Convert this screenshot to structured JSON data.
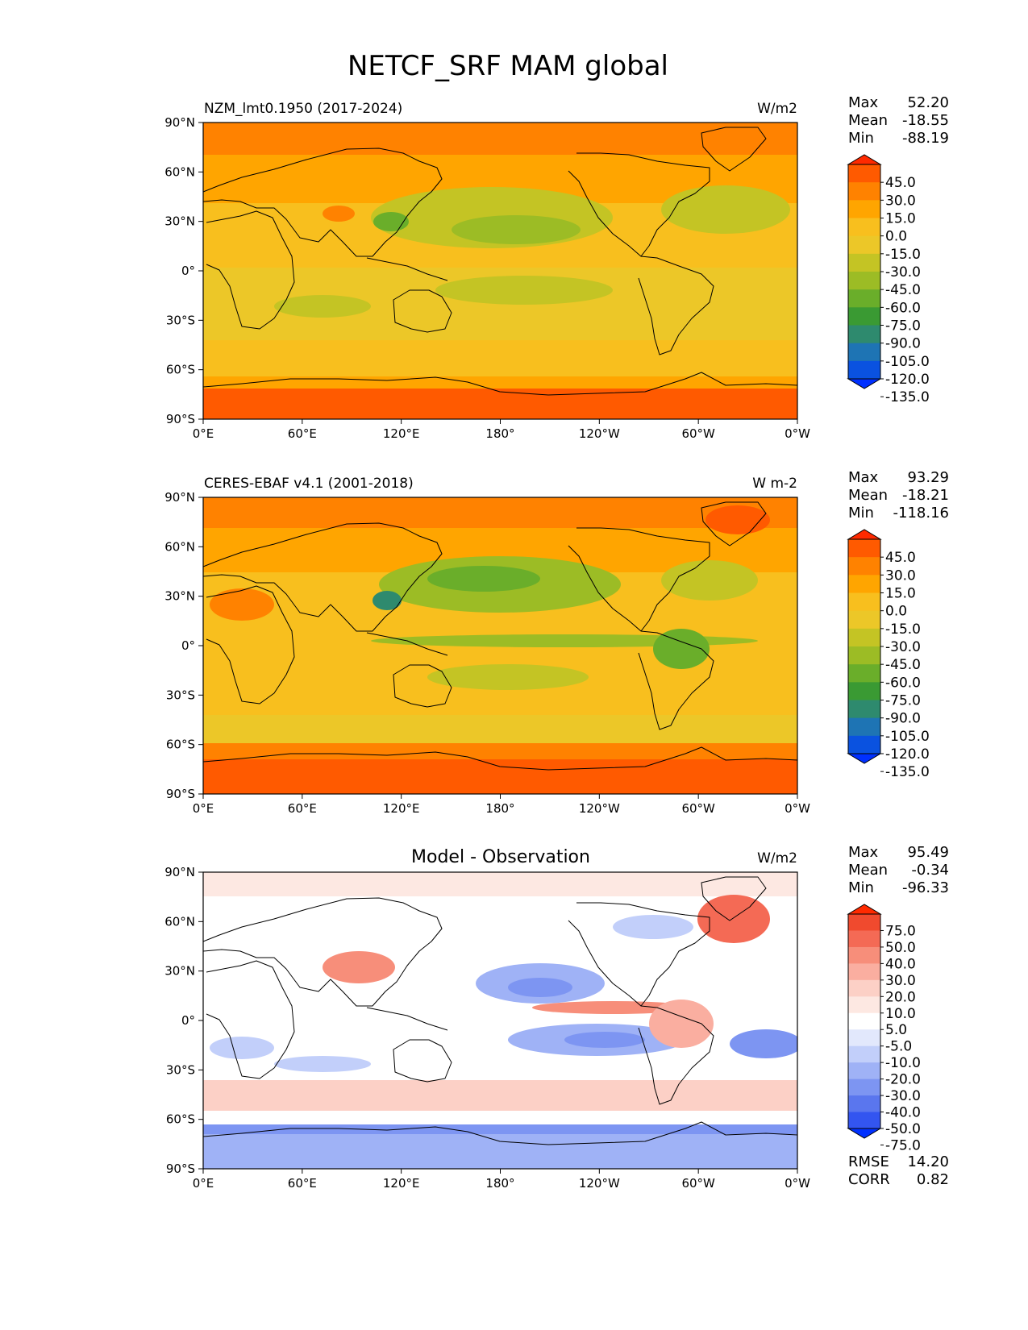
{
  "figure_title": "NETCF_SRF MAM global",
  "chart_data": [
    {
      "type": "heatmap",
      "title": "NZM_lmt0.1950 (2017-2024)",
      "units": "W/m2",
      "stats": {
        "max_label": "Max",
        "mean_label": "Mean",
        "min_label": "Min",
        "max": "52.20",
        "mean": "-18.55",
        "min": "-88.19"
      },
      "colorbar": {
        "levels": [
          "45.0",
          "30.0",
          "15.0",
          "0.0",
          "-15.0",
          "-30.0",
          "-45.0",
          "-60.0",
          "-75.0",
          "-90.0",
          "-105.0",
          "-120.0",
          "-135.0"
        ],
        "colors": [
          "#ff2a00",
          "#ff5a00",
          "#ff8200",
          "#ffa500",
          "#f8bf1e",
          "#ecc728",
          "#c4c424",
          "#9cbc25",
          "#6aae2a",
          "#3a9a33",
          "#2e8a6e",
          "#1e74b4",
          "#0a52e0",
          "#0030ff"
        ]
      },
      "x_ticks": [
        "0°E",
        "60°E",
        "120°E",
        "180°",
        "120°W",
        "60°W",
        "0°W"
      ],
      "y_ticks": [
        "90°N",
        "60°N",
        "30°N",
        "0°",
        "30°S",
        "60°S",
        "90°S"
      ]
    },
    {
      "type": "heatmap",
      "title": "CERES-EBAF v4.1 (2001-2018)",
      "units": "W m-2",
      "stats": {
        "max_label": "Max",
        "mean_label": "Mean",
        "min_label": "Min",
        "max": "93.29",
        "mean": "-18.21",
        "min": "-118.16"
      },
      "colorbar": {
        "levels": [
          "45.0",
          "30.0",
          "15.0",
          "0.0",
          "-15.0",
          "-30.0",
          "-45.0",
          "-60.0",
          "-75.0",
          "-90.0",
          "-105.0",
          "-120.0",
          "-135.0"
        ],
        "colors": [
          "#ff2a00",
          "#ff5a00",
          "#ff8200",
          "#ffa500",
          "#f8bf1e",
          "#ecc728",
          "#c4c424",
          "#9cbc25",
          "#6aae2a",
          "#3a9a33",
          "#2e8a6e",
          "#1e74b4",
          "#0a52e0",
          "#0030ff"
        ]
      },
      "x_ticks": [
        "0°E",
        "60°E",
        "120°E",
        "180°",
        "120°W",
        "60°W",
        "0°W"
      ],
      "y_ticks": [
        "90°N",
        "60°N",
        "30°N",
        "0°",
        "30°S",
        "60°S",
        "90°S"
      ]
    },
    {
      "type": "heatmap",
      "title": "Model - Observation",
      "units": "W/m2",
      "stats": {
        "max_label": "Max",
        "mean_label": "Mean",
        "min_label": "Min",
        "max": "95.49",
        "mean": "-0.34",
        "min": "-96.33"
      },
      "extra_stats": {
        "rmse_label": "RMSE",
        "rmse": "14.20",
        "corr_label": "CORR",
        "corr": "0.82"
      },
      "colorbar": {
        "levels": [
          "75.0",
          "50.0",
          "40.0",
          "30.0",
          "20.0",
          "10.0",
          "5.0",
          "-5.0",
          "-10.0",
          "-20.0",
          "-30.0",
          "-40.0",
          "-50.0",
          "-75.0"
        ],
        "colors": [
          "#ff2a00",
          "#f04a2e",
          "#f46a55",
          "#f78e7a",
          "#faaea0",
          "#fcd0c6",
          "#fde8e2",
          "#ffffff",
          "#e2e8fc",
          "#c2cffa",
          "#9fb2f6",
          "#7d95f2",
          "#5a76ee",
          "#3355f0",
          "#0030ff"
        ]
      },
      "x_ticks": [
        "0°E",
        "60°E",
        "120°E",
        "180°",
        "120°W",
        "60°W",
        "0°W"
      ],
      "y_ticks": [
        "90°N",
        "60°N",
        "30°N",
        "0°",
        "30°S",
        "60°S",
        "90°S"
      ]
    }
  ]
}
